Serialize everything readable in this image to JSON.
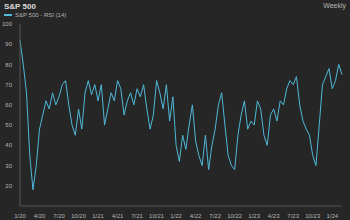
{
  "chart_data": {
    "type": "line",
    "title": "S&P 500",
    "subtitle": "Weekly",
    "categories": [
      "1/20",
      null,
      null,
      null,
      null,
      null,
      "4/20",
      null,
      null,
      null,
      null,
      null,
      "7/20",
      null,
      null,
      null,
      null,
      null,
      "10/20",
      null,
      null,
      null,
      null,
      null,
      "1/21",
      null,
      null,
      null,
      null,
      null,
      "4/21",
      null,
      null,
      null,
      null,
      null,
      "7/21",
      null,
      null,
      null,
      null,
      null,
      "10/21",
      null,
      null,
      null,
      null,
      null,
      "1/22",
      null,
      null,
      null,
      null,
      null,
      "4/22",
      null,
      null,
      null,
      null,
      null,
      "7/22",
      null,
      null,
      null,
      null,
      null,
      "10/22",
      null,
      null,
      null,
      null,
      null,
      "1/23",
      null,
      null,
      null,
      null,
      null,
      "4/23",
      null,
      null,
      null,
      null,
      null,
      "7/23",
      null,
      null,
      null,
      null,
      null,
      "10/23",
      null,
      null,
      null,
      null,
      null,
      "1/24",
      null,
      null,
      null
    ],
    "series": [
      {
        "name": "S&P 500 - RSI (14)",
        "color": "#4fb8d8",
        "values": [
          92,
          80,
          66,
          35,
          18,
          30,
          48,
          55,
          62,
          58,
          66,
          60,
          64,
          70,
          72,
          60,
          50,
          45,
          58,
          48,
          66,
          72,
          65,
          70,
          62,
          70,
          50,
          58,
          66,
          62,
          72,
          68,
          55,
          62,
          66,
          60,
          68,
          64,
          70,
          58,
          48,
          55,
          72,
          66,
          58,
          70,
          52,
          64,
          40,
          32,
          45,
          38,
          50,
          60,
          42,
          35,
          30,
          45,
          28,
          40,
          48,
          60,
          66,
          50,
          35,
          30,
          28,
          45,
          55,
          62,
          48,
          52,
          50,
          62,
          58,
          45,
          40,
          55,
          58,
          52,
          62,
          60,
          68,
          72,
          70,
          74,
          60,
          52,
          48,
          45,
          35,
          30,
          50,
          70,
          74,
          78,
          68,
          72,
          80,
          75
        ]
      }
    ],
    "ylim": [
      10,
      100
    ],
    "yticks": [
      20,
      30,
      40,
      50,
      60,
      70,
      80,
      90,
      100
    ],
    "grid": false
  }
}
